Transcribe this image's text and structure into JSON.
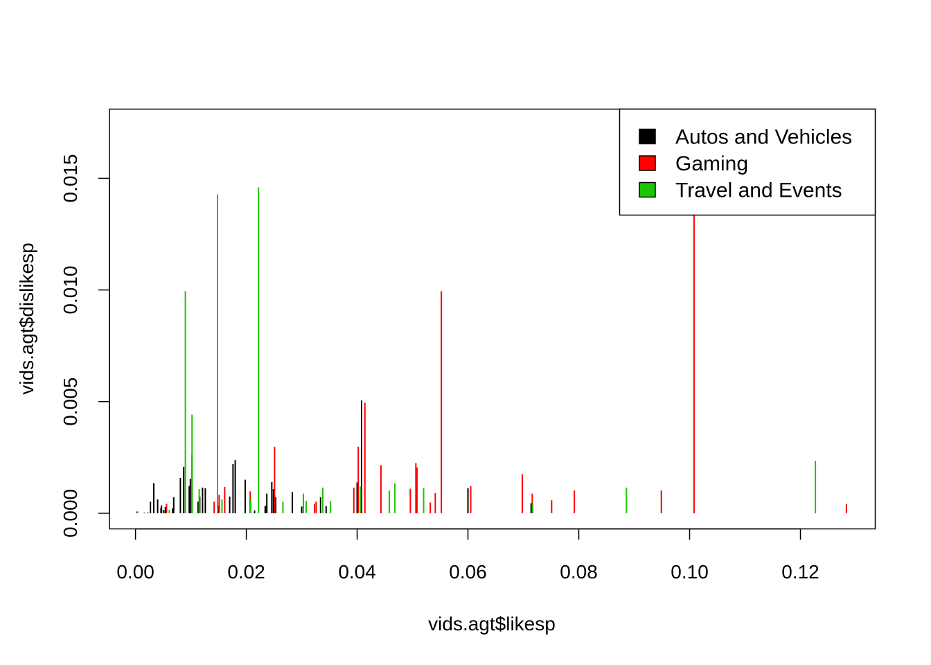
{
  "chart_data": {
    "type": "spike",
    "xlabel": "vids.agt$likesp",
    "ylabel": "vids.agt$dislikesp",
    "xlim": [
      -0.0047,
      0.1335
    ],
    "ylim": [
      -0.0007,
      0.0181
    ],
    "x_ticks": [
      0.0,
      0.02,
      0.04,
      0.06,
      0.08,
      0.1,
      0.12
    ],
    "x_tick_labels": [
      "0.00",
      "0.02",
      "0.04",
      "0.06",
      "0.08",
      "0.10",
      "0.12"
    ],
    "y_ticks": [
      0.0,
      0.005,
      0.01,
      0.015
    ],
    "y_tick_labels": [
      "0.000",
      "0.005",
      "0.010",
      "0.015"
    ],
    "legend_position": "top-right",
    "series": [
      {
        "name": "Autos and Vehicles",
        "color": "#000000",
        "points": [
          [
            0.0003,
            8e-05
          ],
          [
            0.0016,
            3e-05
          ],
          [
            0.0022,
            3e-05
          ],
          [
            0.0027,
            0.00052
          ],
          [
            0.0033,
            0.00135
          ],
          [
            0.004,
            0.00062
          ],
          [
            0.0046,
            0.00025
          ],
          [
            0.0047,
            0.00035
          ],
          [
            0.0051,
            0.00015
          ],
          [
            0.0054,
            0.00028
          ],
          [
            0.0067,
            0.00022
          ],
          [
            0.0069,
            0.00072
          ],
          [
            0.0081,
            0.00158
          ],
          [
            0.0087,
            0.00208
          ],
          [
            0.0097,
            0.00122
          ],
          [
            0.0099,
            0.00155
          ],
          [
            0.0102,
            0.00262
          ],
          [
            0.0113,
            0.00052
          ],
          [
            0.0116,
            0.00075
          ],
          [
            0.0121,
            0.00115
          ],
          [
            0.0126,
            0.00112
          ],
          [
            0.0149,
            0.00035
          ],
          [
            0.017,
            0.00075
          ],
          [
            0.0176,
            0.0022
          ],
          [
            0.018,
            0.00238
          ],
          [
            0.0198,
            0.0015
          ],
          [
            0.0215,
            0.00012
          ],
          [
            0.0234,
            0.00032
          ],
          [
            0.0236,
            0.00035
          ],
          [
            0.0237,
            0.00088
          ],
          [
            0.0246,
            0.0014
          ],
          [
            0.0249,
            0.00108
          ],
          [
            0.0253,
            0.00072
          ],
          [
            0.0283,
            0.00095
          ],
          [
            0.03,
            0.0003
          ],
          [
            0.0303,
            0.00082
          ],
          [
            0.0334,
            0.00072
          ],
          [
            0.0344,
            0.00032
          ],
          [
            0.04,
            0.00138
          ],
          [
            0.0408,
            0.00505
          ],
          [
            0.06,
            0.00112
          ],
          [
            0.0714,
            0.00045
          ]
        ]
      },
      {
        "name": "Gaming",
        "color": "#ff0000",
        "points": [
          [
            0.0056,
            0.00042
          ],
          [
            0.0142,
            0.00052
          ],
          [
            0.0151,
            0.00082
          ],
          [
            0.0161,
            0.00118
          ],
          [
            0.0207,
            0.00098
          ],
          [
            0.0251,
            0.00298
          ],
          [
            0.0323,
            0.00042
          ],
          [
            0.0326,
            0.00052
          ],
          [
            0.0394,
            0.00115
          ],
          [
            0.0402,
            0.00298
          ],
          [
            0.0414,
            0.00495
          ],
          [
            0.0443,
            0.00215
          ],
          [
            0.0496,
            0.0011
          ],
          [
            0.0506,
            0.00225
          ],
          [
            0.0508,
            0.00205
          ],
          [
            0.0532,
            0.00048
          ],
          [
            0.0541,
            0.0009
          ],
          [
            0.0552,
            0.00995
          ],
          [
            0.0605,
            0.00122
          ],
          [
            0.0698,
            0.00175
          ],
          [
            0.0716,
            0.00088
          ],
          [
            0.0751,
            0.00058
          ],
          [
            0.0792,
            0.00102
          ],
          [
            0.0949,
            0.00102
          ],
          [
            0.1008,
            0.01345
          ],
          [
            0.1283,
            0.0004
          ]
        ]
      },
      {
        "name": "Travel and Events",
        "color": "#1fc400",
        "points": [
          [
            0.0004,
            8e-05
          ],
          [
            0.0025,
            2e-05
          ],
          [
            0.0061,
            0.00015
          ],
          [
            0.009,
            0.00995
          ],
          [
            0.0102,
            0.00442
          ],
          [
            0.0115,
            0.00108
          ],
          [
            0.0148,
            0.01428
          ],
          [
            0.0156,
            0.00062
          ],
          [
            0.0208,
            0.00065
          ],
          [
            0.0222,
            0.0146
          ],
          [
            0.0266,
            0.00052
          ],
          [
            0.0303,
            0.00088
          ],
          [
            0.0308,
            0.00055
          ],
          [
            0.0338,
            0.00115
          ],
          [
            0.0352,
            0.00055
          ],
          [
            0.0406,
            0.0012
          ],
          [
            0.0458,
            0.00102
          ],
          [
            0.0468,
            0.00135
          ],
          [
            0.052,
            0.00112
          ],
          [
            0.0717,
            0.0004
          ],
          [
            0.0886,
            0.00115
          ],
          [
            0.1227,
            0.00235
          ]
        ]
      }
    ]
  }
}
